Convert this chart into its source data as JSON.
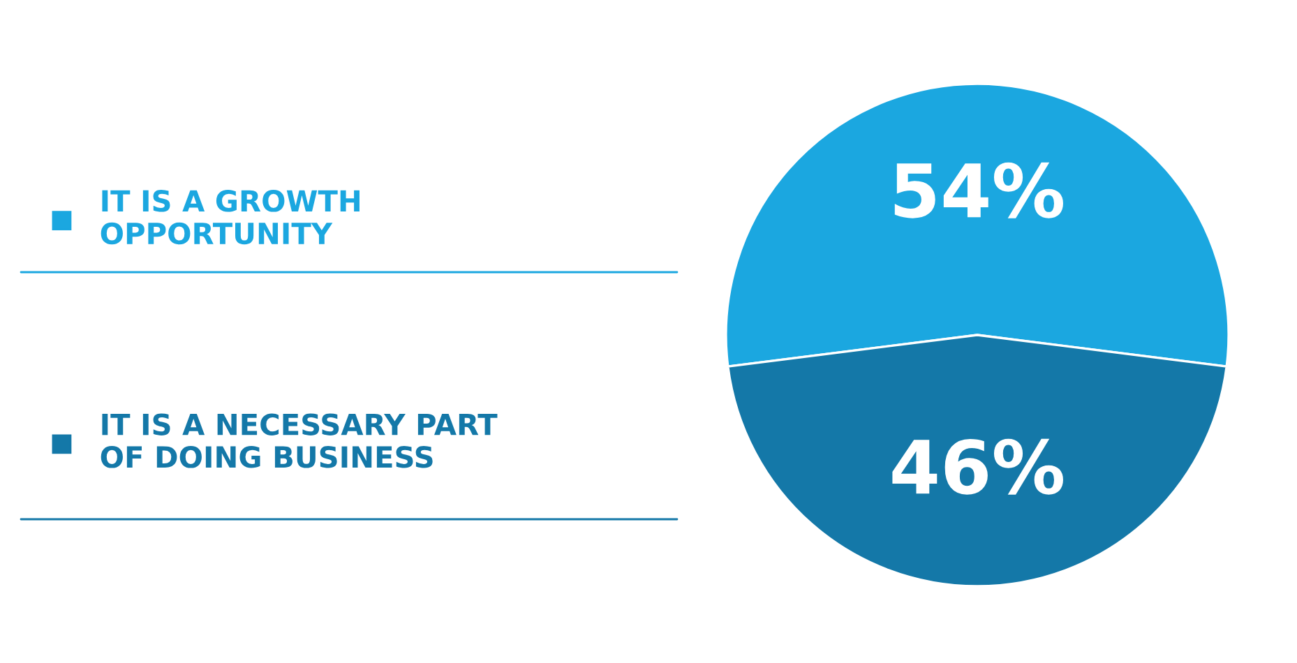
{
  "chart_data": {
    "type": "pie",
    "categories": [
      "IT IS A GROWTH\nOPPORTUNITY",
      "IT IS A NECESSARY PART\nOF DOING BUSINESS"
    ],
    "values": [
      54,
      46
    ],
    "colors": [
      "#1ba7e0",
      "#1478a8"
    ],
    "value_labels": [
      "54%",
      "46%"
    ],
    "legend": "left"
  }
}
